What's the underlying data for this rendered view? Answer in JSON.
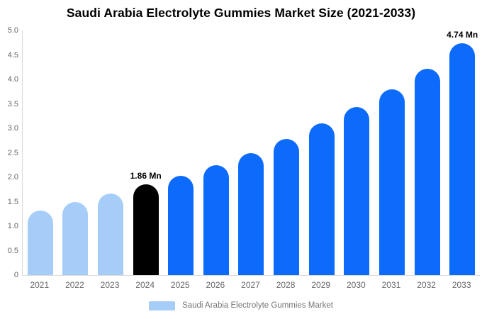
{
  "title": "Saudi Arabia Electrolyte Gummies Market Size (2021-2033)",
  "legend": {
    "label": "Saudi Arabia Electrolyte Gummies Market"
  },
  "colors": {
    "light_blue": "#a5cdf8",
    "blue": "#0d6bfb",
    "black": "#000000",
    "axis_line": "#d9d9d9",
    "tick_text": "#666666",
    "legend_text": "#757575",
    "title_text": "#000000"
  },
  "chart_data": {
    "type": "bar",
    "title": "Saudi Arabia Electrolyte Gummies Market Size (2021-2033)",
    "xlabel": "",
    "ylabel": "",
    "categories": [
      "2021",
      "2022",
      "2023",
      "2024",
      "2025",
      "2026",
      "2027",
      "2028",
      "2029",
      "2030",
      "2031",
      "2032",
      "2033"
    ],
    "values": [
      1.32,
      1.49,
      1.66,
      1.86,
      2.03,
      2.25,
      2.5,
      2.78,
      3.1,
      3.43,
      3.8,
      4.22,
      4.74
    ],
    "unit": "Mn",
    "bar_color_keys": [
      "light_blue",
      "light_blue",
      "light_blue",
      "black",
      "blue",
      "blue",
      "blue",
      "blue",
      "blue",
      "blue",
      "blue",
      "blue",
      "blue"
    ],
    "annotations": [
      {
        "category": "2024",
        "text": "1.86 Mn"
      },
      {
        "category": "2033",
        "text": "4.74 Mn"
      }
    ],
    "ylim": [
      0,
      5
    ],
    "ytick_labels": [
      "0",
      "0.5",
      "1.0",
      "1.5",
      "2.0",
      "2.5",
      "3.0",
      "3.5",
      "4.0",
      "4.5",
      "5.0"
    ],
    "grid": false,
    "legend_position": "bottom",
    "legend_entries": [
      "Saudi Arabia Electrolyte Gummies Market"
    ]
  }
}
